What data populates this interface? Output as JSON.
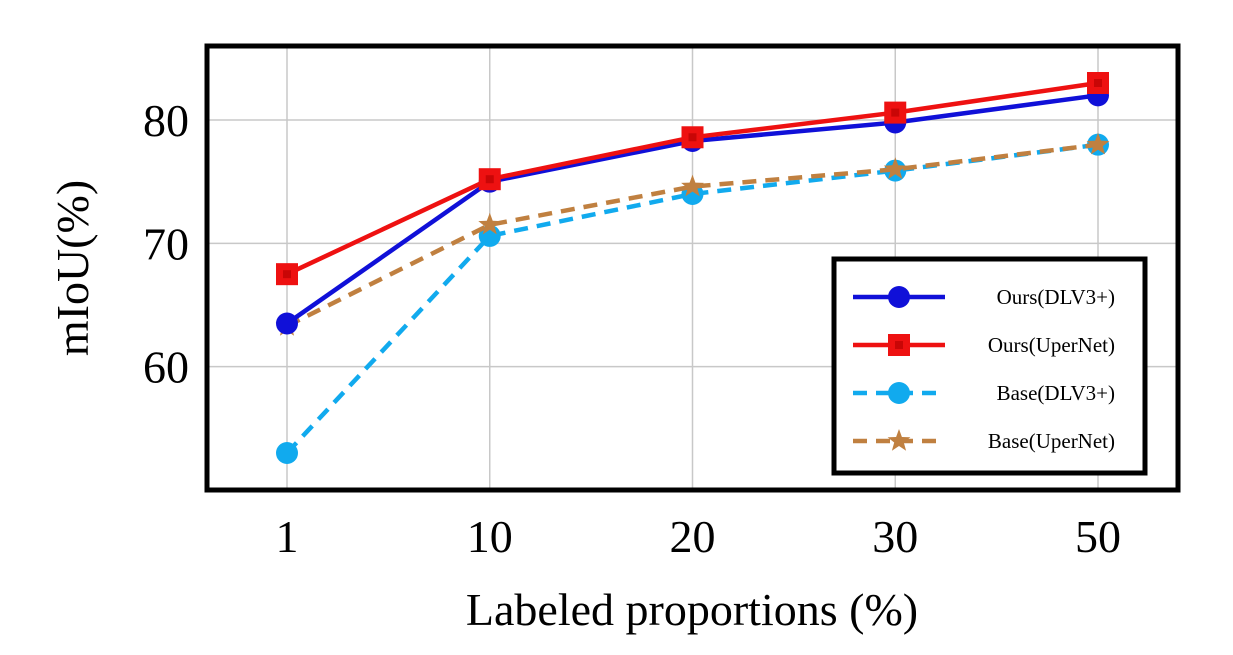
{
  "chart_data": {
    "type": "line",
    "title": "",
    "xlabel": "Labeled proportions (%)",
    "ylabel": "mIoU(%)",
    "categories": [
      "1",
      "10",
      "20",
      "30",
      "50"
    ],
    "ylim": [
      50,
      86
    ],
    "yticks": [
      60,
      70,
      80
    ],
    "grid": true,
    "legend_position": "bottom-right",
    "series": [
      {
        "name": "Ours(DLV3+)",
        "values": [
          63.5,
          75.0,
          78.3,
          79.8,
          82.0
        ],
        "color": "#1010d8",
        "marker": "circle",
        "dash": "solid"
      },
      {
        "name": "Ours(UperNet)",
        "values": [
          67.5,
          75.2,
          78.6,
          80.6,
          83.0
        ],
        "color": "#ee1111",
        "marker": "square",
        "dash": "solid"
      },
      {
        "name": "Base(DLV3+)",
        "values": [
          53.0,
          70.6,
          74.0,
          75.9,
          78.0
        ],
        "color": "#11aaee",
        "marker": "circle",
        "dash": "dashed"
      },
      {
        "name": "Base(UperNet)",
        "values": [
          63.3,
          71.5,
          74.6,
          76.0,
          78.0
        ],
        "color": "#c08040",
        "marker": "star",
        "dash": "dashed"
      }
    ]
  }
}
